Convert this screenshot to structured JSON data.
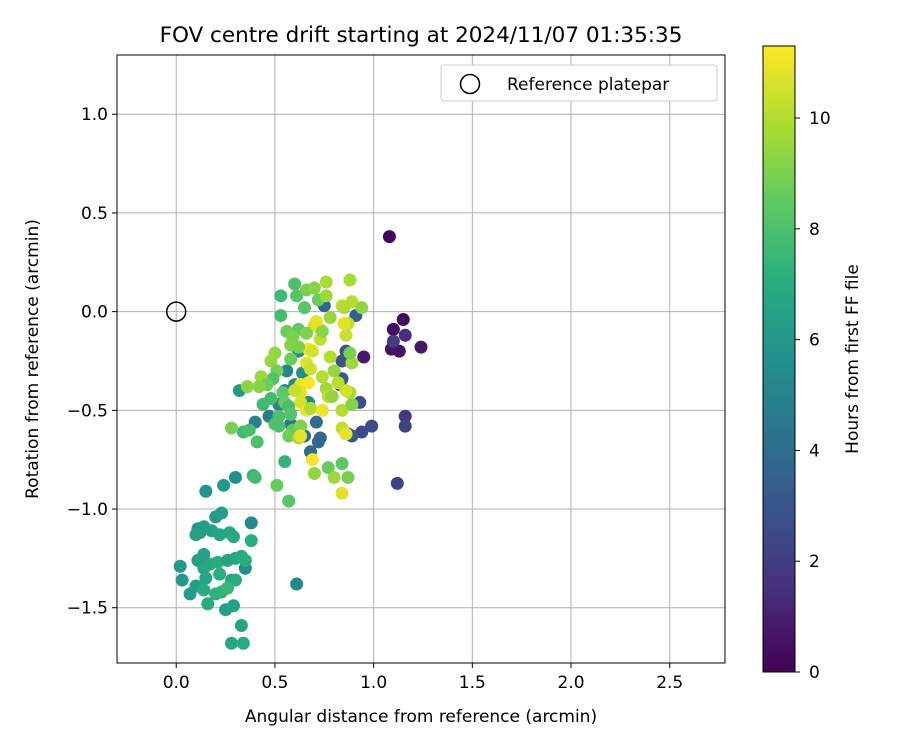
{
  "chart_data": {
    "type": "scatter",
    "title": "FOV centre drift starting at 2024/11/07 01:35:35",
    "xlabel": "Angular distance from reference (arcmin)",
    "ylabel": "Rotation from reference (arcmin)",
    "xlim": [
      -0.3,
      2.78
    ],
    "ylim": [
      -1.78,
      1.3
    ],
    "xticks": [
      0.0,
      0.5,
      1.0,
      1.5,
      2.0,
      2.5
    ],
    "xtick_labels": [
      "0.0",
      "0.5",
      "1.0",
      "1.5",
      "2.0",
      "2.5"
    ],
    "yticks": [
      -1.5,
      -1.0,
      -0.5,
      0.0,
      0.5,
      1.0
    ],
    "ytick_labels": [
      "−1.5",
      "−1.0",
      "−0.5",
      "0.0",
      "0.5",
      "1.0"
    ],
    "grid": true,
    "legend": {
      "position": "top-right",
      "label": "Reference platepar"
    },
    "reference_point": {
      "x": 0.0,
      "y": 0.0
    },
    "colorbar": {
      "label": "Hours from first FF file",
      "colormap": "viridis",
      "range": [
        0,
        11.3
      ],
      "ticks": [
        0,
        2,
        4,
        6,
        8,
        10
      ],
      "tick_labels": [
        "0",
        "2",
        "4",
        "6",
        "8",
        "10"
      ]
    },
    "points": [
      {
        "x": 1.08,
        "y": 0.38,
        "h": 0.2
      },
      {
        "x": 1.15,
        "y": -0.04,
        "h": 0.3
      },
      {
        "x": 1.1,
        "y": -0.09,
        "h": 0.4
      },
      {
        "x": 1.09,
        "y": -0.19,
        "h": 0.5
      },
      {
        "x": 1.13,
        "y": -0.2,
        "h": 0.6
      },
      {
        "x": 1.24,
        "y": -0.18,
        "h": 0.7
      },
      {
        "x": 0.95,
        "y": -0.23,
        "h": 0.8
      },
      {
        "x": 1.16,
        "y": -0.12,
        "h": 1.5
      },
      {
        "x": 1.1,
        "y": -0.15,
        "h": 2.0
      },
      {
        "x": 1.16,
        "y": -0.53,
        "h": 1.8
      },
      {
        "x": 1.16,
        "y": -0.58,
        "h": 2.2
      },
      {
        "x": 1.12,
        "y": -0.87,
        "h": 2.3
      },
      {
        "x": 0.99,
        "y": -0.58,
        "h": 2.6
      },
      {
        "x": 0.94,
        "y": -0.61,
        "h": 2.5
      },
      {
        "x": 0.93,
        "y": -0.46,
        "h": 2.7
      },
      {
        "x": 0.89,
        "y": -0.63,
        "h": 3.0
      },
      {
        "x": 0.87,
        "y": -0.62,
        "h": 3.2
      },
      {
        "x": 0.84,
        "y": -0.25,
        "h": 2.9
      },
      {
        "x": 0.86,
        "y": -0.2,
        "h": 3.1
      },
      {
        "x": 0.84,
        "y": -0.34,
        "h": 3.3
      },
      {
        "x": 0.83,
        "y": -0.37,
        "h": 3.5
      },
      {
        "x": 0.91,
        "y": -0.02,
        "h": 3.4
      },
      {
        "x": 0.75,
        "y": 0.03,
        "h": 3.6
      },
      {
        "x": 0.73,
        "y": -0.64,
        "h": 3.7
      },
      {
        "x": 0.72,
        "y": -0.66,
        "h": 3.8
      },
      {
        "x": 0.68,
        "y": -0.71,
        "h": 3.9
      },
      {
        "x": 0.71,
        "y": -0.56,
        "h": 4.0
      },
      {
        "x": 0.65,
        "y": -0.63,
        "h": 4.2
      },
      {
        "x": 0.63,
        "y": -0.58,
        "h": 4.4
      },
      {
        "x": 0.58,
        "y": -0.57,
        "h": 4.6
      },
      {
        "x": 0.55,
        "y": -0.4,
        "h": 4.8
      },
      {
        "x": 0.52,
        "y": -0.47,
        "h": 5.0
      },
      {
        "x": 0.47,
        "y": -0.53,
        "h": 4.9
      },
      {
        "x": 0.4,
        "y": -0.56,
        "h": 5.0
      },
      {
        "x": 0.56,
        "y": -0.3,
        "h": 5.2
      },
      {
        "x": 0.6,
        "y": -0.37,
        "h": 5.3
      },
      {
        "x": 0.62,
        "y": -0.2,
        "h": 5.4
      },
      {
        "x": 0.67,
        "y": -0.46,
        "h": 5.5
      },
      {
        "x": 0.64,
        "y": -0.31,
        "h": 5.6
      },
      {
        "x": 0.61,
        "y": -1.38,
        "h": 5.3
      },
      {
        "x": 0.38,
        "y": -1.07,
        "h": 5.4
      },
      {
        "x": 0.35,
        "y": -1.3,
        "h": 5.5
      },
      {
        "x": 0.3,
        "y": -0.84,
        "h": 5.6
      },
      {
        "x": 0.32,
        "y": -0.4,
        "h": 6.0
      },
      {
        "x": 0.15,
        "y": -0.91,
        "h": 5.8
      },
      {
        "x": 0.24,
        "y": -0.88,
        "h": 6.1
      },
      {
        "x": 0.2,
        "y": -1.04,
        "h": 6.2
      },
      {
        "x": 0.23,
        "y": -1.02,
        "h": 6.3
      },
      {
        "x": 0.11,
        "y": -1.1,
        "h": 6.0
      },
      {
        "x": 0.12,
        "y": -1.12,
        "h": 6.1
      },
      {
        "x": 0.14,
        "y": -1.09,
        "h": 6.2
      },
      {
        "x": 0.1,
        "y": -1.13,
        "h": 6.4
      },
      {
        "x": 0.18,
        "y": -1.11,
        "h": 6.5
      },
      {
        "x": 0.22,
        "y": -1.13,
        "h": 6.6
      },
      {
        "x": 0.27,
        "y": -1.12,
        "h": 6.7
      },
      {
        "x": 0.29,
        "y": -1.14,
        "h": 6.8
      },
      {
        "x": 0.38,
        "y": -1.16,
        "h": 7.0
      },
      {
        "x": 0.02,
        "y": -1.29,
        "h": 6.0
      },
      {
        "x": 0.03,
        "y": -1.36,
        "h": 6.1
      },
      {
        "x": 0.07,
        "y": -1.43,
        "h": 6.2
      },
      {
        "x": 0.1,
        "y": -1.39,
        "h": 6.3
      },
      {
        "x": 0.11,
        "y": -1.26,
        "h": 6.4
      },
      {
        "x": 0.14,
        "y": -1.23,
        "h": 6.5
      },
      {
        "x": 0.14,
        "y": -1.3,
        "h": 6.6
      },
      {
        "x": 0.15,
        "y": -1.35,
        "h": 6.7
      },
      {
        "x": 0.17,
        "y": -1.28,
        "h": 6.8
      },
      {
        "x": 0.14,
        "y": -1.41,
        "h": 6.9
      },
      {
        "x": 0.16,
        "y": -1.48,
        "h": 6.9
      },
      {
        "x": 0.21,
        "y": -1.27,
        "h": 7.0
      },
      {
        "x": 0.22,
        "y": -1.33,
        "h": 7.1
      },
      {
        "x": 0.2,
        "y": -1.43,
        "h": 7.2
      },
      {
        "x": 0.23,
        "y": -1.42,
        "h": 7.3
      },
      {
        "x": 0.26,
        "y": -1.26,
        "h": 6.5
      },
      {
        "x": 0.28,
        "y": -1.36,
        "h": 6.6
      },
      {
        "x": 0.3,
        "y": -1.25,
        "h": 6.7
      },
      {
        "x": 0.3,
        "y": -1.36,
        "h": 6.8
      },
      {
        "x": 0.33,
        "y": -1.24,
        "h": 6.9
      },
      {
        "x": 0.35,
        "y": -1.26,
        "h": 7.0
      },
      {
        "x": 0.25,
        "y": -1.51,
        "h": 6.4
      },
      {
        "x": 0.29,
        "y": -1.49,
        "h": 6.5
      },
      {
        "x": 0.33,
        "y": -1.59,
        "h": 6.6
      },
      {
        "x": 0.28,
        "y": -1.68,
        "h": 6.7
      },
      {
        "x": 0.34,
        "y": -1.68,
        "h": 6.8
      },
      {
        "x": 0.26,
        "y": -1.4,
        "h": 7.5
      },
      {
        "x": 0.39,
        "y": -0.83,
        "h": 7.5
      },
      {
        "x": 0.4,
        "y": -0.84,
        "h": 7.8
      },
      {
        "x": 0.34,
        "y": -0.61,
        "h": 7.6
      },
      {
        "x": 0.37,
        "y": -0.6,
        "h": 7.9
      },
      {
        "x": 0.41,
        "y": -0.66,
        "h": 8.0
      },
      {
        "x": 0.44,
        "y": -0.47,
        "h": 7.7
      },
      {
        "x": 0.48,
        "y": -0.44,
        "h": 7.8
      },
      {
        "x": 0.52,
        "y": -0.53,
        "h": 8.0
      },
      {
        "x": 0.5,
        "y": -0.57,
        "h": 8.1
      },
      {
        "x": 0.55,
        "y": -0.76,
        "h": 7.4
      },
      {
        "x": 0.57,
        "y": -0.96,
        "h": 8.3
      },
      {
        "x": 0.51,
        "y": -0.88,
        "h": 8.6
      },
      {
        "x": 0.53,
        "y": 0.08,
        "h": 7.6
      },
      {
        "x": 0.53,
        "y": -0.02,
        "h": 7.8
      },
      {
        "x": 0.6,
        "y": 0.14,
        "h": 8.0
      },
      {
        "x": 0.61,
        "y": 0.08,
        "h": 8.2
      },
      {
        "x": 0.65,
        "y": 0.02,
        "h": 8.3
      },
      {
        "x": 0.62,
        "y": -0.09,
        "h": 8.5
      },
      {
        "x": 0.56,
        "y": -0.1,
        "h": 8.8
      },
      {
        "x": 0.59,
        "y": -0.13,
        "h": 9.0
      },
      {
        "x": 0.58,
        "y": -0.17,
        "h": 9.1
      },
      {
        "x": 0.5,
        "y": -0.21,
        "h": 9.4
      },
      {
        "x": 0.48,
        "y": -0.25,
        "h": 9.5
      },
      {
        "x": 0.51,
        "y": -0.3,
        "h": 8.9
      },
      {
        "x": 0.49,
        "y": -0.34,
        "h": 8.1
      },
      {
        "x": 0.43,
        "y": -0.33,
        "h": 9.6
      },
      {
        "x": 0.46,
        "y": -0.37,
        "h": 8.7
      },
      {
        "x": 0.42,
        "y": -0.38,
        "h": 9.2
      },
      {
        "x": 0.54,
        "y": -0.41,
        "h": 8.4
      },
      {
        "x": 0.55,
        "y": -0.46,
        "h": 8.6
      },
      {
        "x": 0.57,
        "y": -0.48,
        "h": 7.9
      },
      {
        "x": 0.58,
        "y": -0.52,
        "h": 8.2
      },
      {
        "x": 0.59,
        "y": -0.6,
        "h": 8.5
      },
      {
        "x": 0.57,
        "y": -0.63,
        "h": 8.8
      },
      {
        "x": 0.63,
        "y": -0.58,
        "h": 9.1
      },
      {
        "x": 0.62,
        "y": -0.64,
        "h": 9.8
      },
      {
        "x": 0.52,
        "y": -0.58,
        "h": 8.0
      },
      {
        "x": 0.28,
        "y": -0.59,
        "h": 8.9
      },
      {
        "x": 0.36,
        "y": -0.38,
        "h": 9.3
      },
      {
        "x": 0.66,
        "y": 0.11,
        "h": 9.0
      },
      {
        "x": 0.7,
        "y": 0.12,
        "h": 9.2
      },
      {
        "x": 0.72,
        "y": 0.06,
        "h": 8.7
      },
      {
        "x": 0.76,
        "y": 0.08,
        "h": 9.6
      },
      {
        "x": 0.76,
        "y": 0.15,
        "h": 9.8
      },
      {
        "x": 0.7,
        "y": -0.07,
        "h": 10.5
      },
      {
        "x": 0.73,
        "y": -0.09,
        "h": 11.0
      },
      {
        "x": 0.73,
        "y": -0.14,
        "h": 10.2
      },
      {
        "x": 0.67,
        "y": -0.19,
        "h": 11.1
      },
      {
        "x": 0.66,
        "y": -0.26,
        "h": 10.7
      },
      {
        "x": 0.68,
        "y": -0.29,
        "h": 10.4
      },
      {
        "x": 0.63,
        "y": -0.37,
        "h": 11.0
      },
      {
        "x": 0.67,
        "y": -0.36,
        "h": 11.2
      },
      {
        "x": 0.74,
        "y": -0.33,
        "h": 10.0
      },
      {
        "x": 0.76,
        "y": -0.39,
        "h": 9.7
      },
      {
        "x": 0.63,
        "y": -0.41,
        "h": 10.8
      },
      {
        "x": 0.6,
        "y": -0.4,
        "h": 10.3
      },
      {
        "x": 0.63,
        "y": -0.46,
        "h": 10.6
      },
      {
        "x": 0.66,
        "y": -0.5,
        "h": 10.9
      },
      {
        "x": 0.68,
        "y": -0.49,
        "h": 9.9
      },
      {
        "x": 0.77,
        "y": -0.43,
        "h": 10.1
      },
      {
        "x": 0.74,
        "y": -0.5,
        "h": 11.0
      },
      {
        "x": 0.79,
        "y": -0.43,
        "h": 9.4
      },
      {
        "x": 0.63,
        "y": -0.63,
        "h": 10.9
      },
      {
        "x": 0.69,
        "y": -0.75,
        "h": 11.2
      },
      {
        "x": 0.7,
        "y": -0.82,
        "h": 9.4
      },
      {
        "x": 0.77,
        "y": -0.79,
        "h": 8.6
      },
      {
        "x": 0.8,
        "y": -0.84,
        "h": 9.6
      },
      {
        "x": 0.84,
        "y": -0.77,
        "h": 8.4
      },
      {
        "x": 0.87,
        "y": -0.84,
        "h": 8.9
      },
      {
        "x": 0.84,
        "y": -0.92,
        "h": 10.8
      },
      {
        "x": 0.84,
        "y": -0.59,
        "h": 10.2
      },
      {
        "x": 0.86,
        "y": -0.62,
        "h": 10.9
      },
      {
        "x": 0.84,
        "y": -0.5,
        "h": 10.0
      },
      {
        "x": 0.89,
        "y": -0.47,
        "h": 9.2
      },
      {
        "x": 0.88,
        "y": -0.41,
        "h": 9.7
      },
      {
        "x": 0.86,
        "y": -0.4,
        "h": 10.6
      },
      {
        "x": 0.82,
        "y": -0.36,
        "h": 10.1
      },
      {
        "x": 0.89,
        "y": -0.26,
        "h": 9.6
      },
      {
        "x": 0.88,
        "y": -0.21,
        "h": 9.0
      },
      {
        "x": 0.86,
        "y": -0.12,
        "h": 10.4
      },
      {
        "x": 0.87,
        "y": -0.06,
        "h": 10.2
      },
      {
        "x": 0.85,
        "y": -0.06,
        "h": 10.8
      },
      {
        "x": 0.84,
        "y": 0.03,
        "h": 10.3
      },
      {
        "x": 0.85,
        "y": 0.02,
        "h": 9.9
      },
      {
        "x": 0.89,
        "y": 0.05,
        "h": 10.0
      },
      {
        "x": 0.94,
        "y": 0.02,
        "h": 9.4
      },
      {
        "x": 0.88,
        "y": 0.16,
        "h": 9.8
      },
      {
        "x": 0.78,
        "y": -0.03,
        "h": 9.5
      },
      {
        "x": 0.71,
        "y": -0.05,
        "h": 10.9
      },
      {
        "x": 0.74,
        "y": -0.1,
        "h": 9.3
      },
      {
        "x": 0.69,
        "y": -0.2,
        "h": 10.6
      },
      {
        "x": 0.62,
        "y": -0.18,
        "h": 9.0
      },
      {
        "x": 0.58,
        "y": -0.24,
        "h": 8.7
      },
      {
        "x": 0.66,
        "y": -0.11,
        "h": 9.1
      },
      {
        "x": 0.78,
        "y": -0.23,
        "h": 10.0
      },
      {
        "x": 0.8,
        "y": -0.3,
        "h": 9.5
      }
    ]
  }
}
